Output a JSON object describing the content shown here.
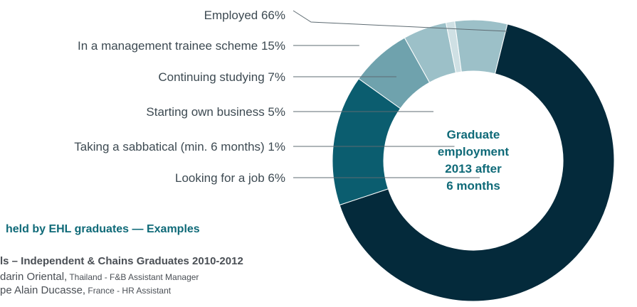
{
  "chart_data": {
    "type": "pie",
    "style": "donut",
    "title": "",
    "center_label": [
      "Graduate",
      "employment",
      "2013 after",
      "6 months"
    ],
    "slices": [
      {
        "label": "Employed  66%",
        "value": 66,
        "color": "#042a3b"
      },
      {
        "label": "In a management trainee scheme 15%",
        "value": 15,
        "color": "#0b5d6f"
      },
      {
        "label": "Continuing studying  7%",
        "value": 7,
        "color": "#6fa2ad"
      },
      {
        "label": "Starting own business  5%",
        "value": 5,
        "color": "#9cc0c8"
      },
      {
        "label": "Taking a sabbatical (min. 6 months)  1%",
        "value": 1,
        "color": "#cfe0e4"
      },
      {
        "label": "Looking for a job  6%",
        "value": 6,
        "color": "#9cc0c8"
      }
    ]
  },
  "footer": {
    "heading": "held by EHL graduates — Examples",
    "subheading": "ls – Independent & Chains Graduates 2010-2012",
    "lines": [
      {
        "name": "darin Oriental,",
        "detail": " Thailand - F&B Assistant Manager"
      },
      {
        "name": "pe Alain Ducasse,",
        "detail": " France - HR Assistant"
      }
    ]
  }
}
